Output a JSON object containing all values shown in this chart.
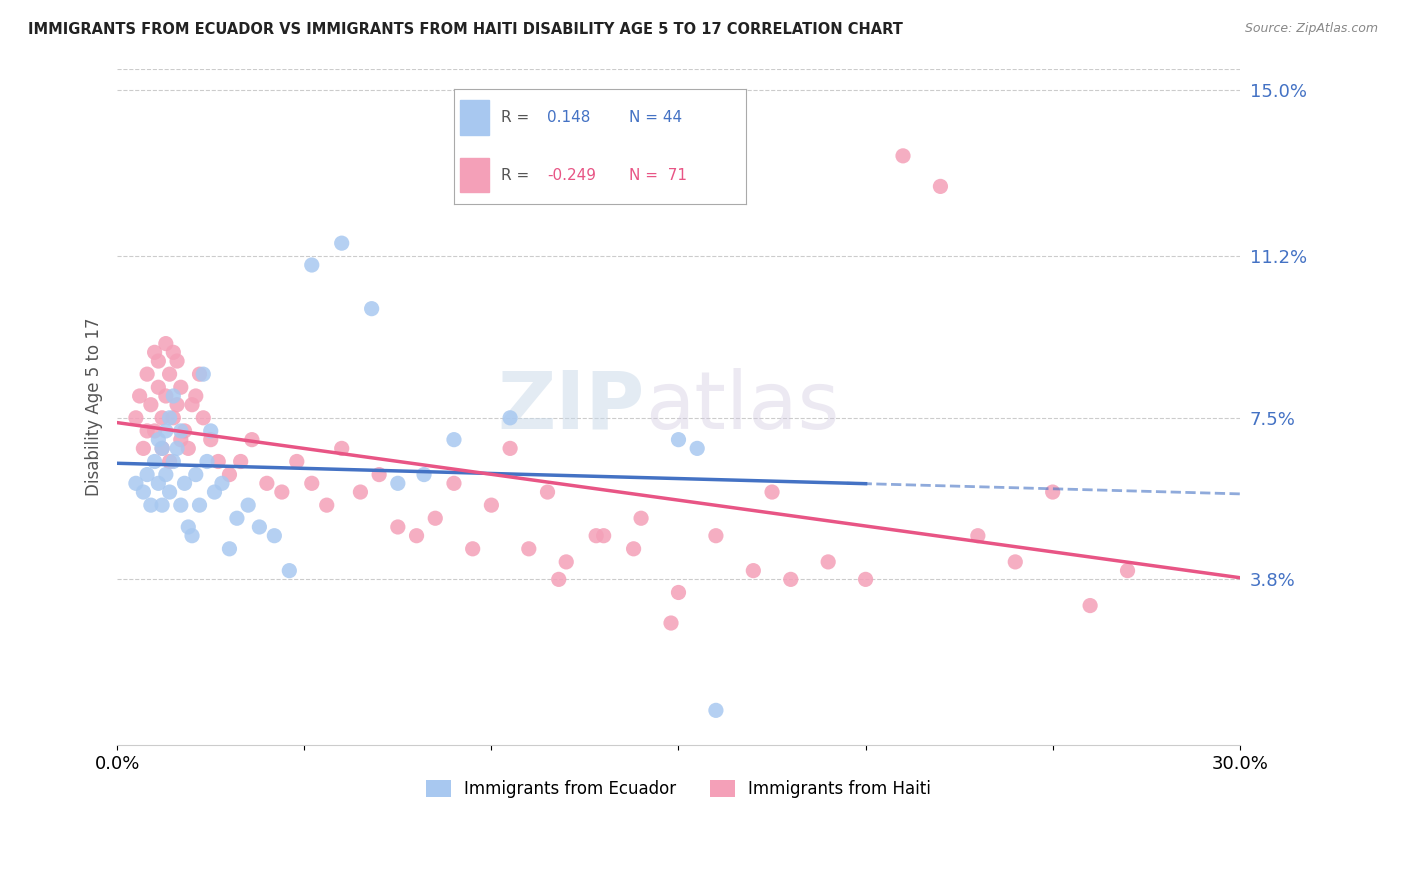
{
  "title": "IMMIGRANTS FROM ECUADOR VS IMMIGRANTS FROM HAITI DISABILITY AGE 5 TO 17 CORRELATION CHART",
  "source": "Source: ZipAtlas.com",
  "ylabel": "Disability Age 5 to 17",
  "xlim": [
    0.0,
    0.3
  ],
  "ylim": [
    0.0,
    0.155
  ],
  "ytick_labels_right": [
    "15.0%",
    "11.2%",
    "7.5%",
    "3.8%"
  ],
  "ytick_values_right": [
    0.15,
    0.112,
    0.075,
    0.038
  ],
  "ecuador_R": 0.148,
  "ecuador_N": 44,
  "haiti_R": -0.249,
  "haiti_N": 71,
  "ecuador_color": "#a8c8f0",
  "haiti_color": "#f4a0b8",
  "ecuador_line_color": "#4472c4",
  "haiti_line_color": "#e85585",
  "right_label_color": "#4472c4",
  "ecuador_scatter_x": [
    0.005,
    0.007,
    0.008,
    0.009,
    0.01,
    0.011,
    0.011,
    0.012,
    0.012,
    0.013,
    0.013,
    0.014,
    0.014,
    0.015,
    0.015,
    0.016,
    0.017,
    0.017,
    0.018,
    0.019,
    0.02,
    0.021,
    0.022,
    0.023,
    0.024,
    0.025,
    0.026,
    0.028,
    0.03,
    0.032,
    0.035,
    0.038,
    0.042,
    0.046,
    0.052,
    0.06,
    0.068,
    0.075,
    0.082,
    0.09,
    0.105,
    0.15,
    0.155,
    0.16
  ],
  "ecuador_scatter_y": [
    0.06,
    0.058,
    0.062,
    0.055,
    0.065,
    0.06,
    0.07,
    0.055,
    0.068,
    0.062,
    0.072,
    0.058,
    0.075,
    0.065,
    0.08,
    0.068,
    0.055,
    0.072,
    0.06,
    0.05,
    0.048,
    0.062,
    0.055,
    0.085,
    0.065,
    0.072,
    0.058,
    0.06,
    0.045,
    0.052,
    0.055,
    0.05,
    0.048,
    0.04,
    0.11,
    0.115,
    0.1,
    0.06,
    0.062,
    0.07,
    0.075,
    0.07,
    0.068,
    0.008
  ],
  "haiti_scatter_x": [
    0.005,
    0.006,
    0.007,
    0.008,
    0.008,
    0.009,
    0.01,
    0.01,
    0.011,
    0.011,
    0.012,
    0.012,
    0.013,
    0.013,
    0.014,
    0.014,
    0.015,
    0.015,
    0.016,
    0.016,
    0.017,
    0.017,
    0.018,
    0.019,
    0.02,
    0.021,
    0.022,
    0.023,
    0.025,
    0.027,
    0.03,
    0.033,
    0.036,
    0.04,
    0.044,
    0.048,
    0.052,
    0.056,
    0.06,
    0.065,
    0.07,
    0.075,
    0.08,
    0.085,
    0.09,
    0.095,
    0.1,
    0.105,
    0.11,
    0.115,
    0.12,
    0.13,
    0.14,
    0.15,
    0.16,
    0.17,
    0.175,
    0.18,
    0.19,
    0.2,
    0.21,
    0.22,
    0.23,
    0.24,
    0.25,
    0.26,
    0.27,
    0.148,
    0.138,
    0.128,
    0.118
  ],
  "haiti_scatter_y": [
    0.075,
    0.08,
    0.068,
    0.072,
    0.085,
    0.078,
    0.072,
    0.09,
    0.082,
    0.088,
    0.075,
    0.068,
    0.08,
    0.092,
    0.065,
    0.085,
    0.075,
    0.09,
    0.088,
    0.078,
    0.07,
    0.082,
    0.072,
    0.068,
    0.078,
    0.08,
    0.085,
    0.075,
    0.07,
    0.065,
    0.062,
    0.065,
    0.07,
    0.06,
    0.058,
    0.065,
    0.06,
    0.055,
    0.068,
    0.058,
    0.062,
    0.05,
    0.048,
    0.052,
    0.06,
    0.045,
    0.055,
    0.068,
    0.045,
    0.058,
    0.042,
    0.048,
    0.052,
    0.035,
    0.048,
    0.04,
    0.058,
    0.038,
    0.042,
    0.038,
    0.135,
    0.128,
    0.048,
    0.042,
    0.058,
    0.032,
    0.04,
    0.028,
    0.045,
    0.048,
    0.038
  ],
  "watermark_zip": "ZIP",
  "watermark_atlas": "atlas",
  "background_color": "#ffffff",
  "grid_color": "#cccccc"
}
